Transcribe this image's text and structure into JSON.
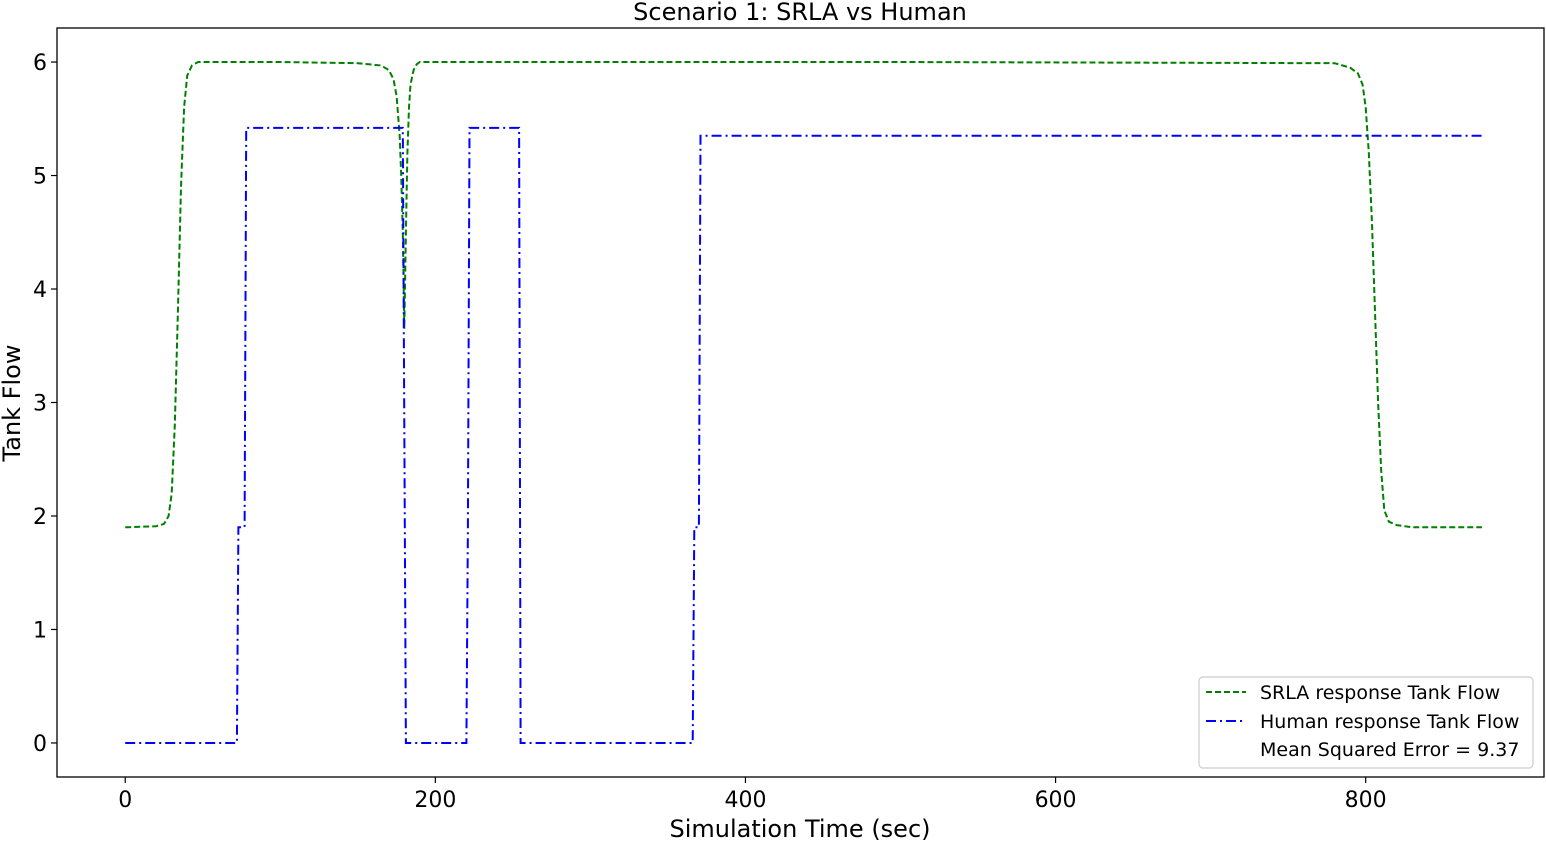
{
  "chart_data": {
    "type": "line",
    "title": "Scenario 1: SRLA vs Human",
    "xlabel": "Simulation Time (sec)",
    "ylabel": "Tank Flow",
    "xlim": [
      -44,
      915
    ],
    "ylim": [
      -0.3,
      6.3
    ],
    "xticks": [
      0,
      200,
      400,
      600,
      800
    ],
    "yticks": [
      0,
      1,
      2,
      3,
      4,
      5,
      6
    ],
    "grid": false,
    "legend_position": "lower-right",
    "series": [
      {
        "name": "SRLA response Tank Flow",
        "color": "#008000",
        "style": "dashed",
        "x": [
          0,
          20,
          25,
          28,
          30,
          32,
          34,
          36,
          38,
          40,
          43,
          47,
          55,
          100,
          150,
          165,
          170,
          173,
          175,
          177,
          178,
          179,
          180,
          181,
          182,
          183,
          184,
          186,
          188,
          190,
          195,
          210,
          300,
          500,
          780,
          790,
          795,
          798,
          800,
          802,
          804,
          806,
          808,
          810,
          812,
          815,
          820,
          830,
          875
        ],
        "values": [
          1.9,
          1.91,
          1.93,
          2.0,
          2.2,
          2.8,
          3.8,
          4.9,
          5.6,
          5.88,
          5.97,
          6.0,
          6.0,
          6.0,
          5.99,
          5.97,
          5.93,
          5.85,
          5.7,
          5.35,
          5.0,
          4.5,
          3.65,
          4.5,
          5.2,
          5.6,
          5.8,
          5.93,
          5.98,
          6.0,
          6.0,
          6.0,
          6.0,
          6.0,
          5.99,
          5.95,
          5.9,
          5.8,
          5.6,
          5.2,
          4.6,
          3.8,
          3.0,
          2.4,
          2.05,
          1.95,
          1.92,
          1.9,
          1.9
        ]
      },
      {
        "name": "Human response Tank Flow",
        "color": "#0000ff",
        "style": "dashdot",
        "x": [
          0,
          72,
          73,
          77,
          78,
          179,
          181,
          182,
          220,
          221,
          222,
          223,
          254,
          255,
          366,
          367,
          370,
          371,
          875
        ],
        "values": [
          0,
          0,
          1.9,
          1.9,
          5.42,
          5.42,
          0,
          0,
          0,
          1.9,
          5.42,
          5.42,
          5.42,
          0,
          0,
          1.9,
          1.9,
          5.35,
          5.35
        ]
      }
    ],
    "legend_note": "Mean Squared Error = 9.37"
  }
}
